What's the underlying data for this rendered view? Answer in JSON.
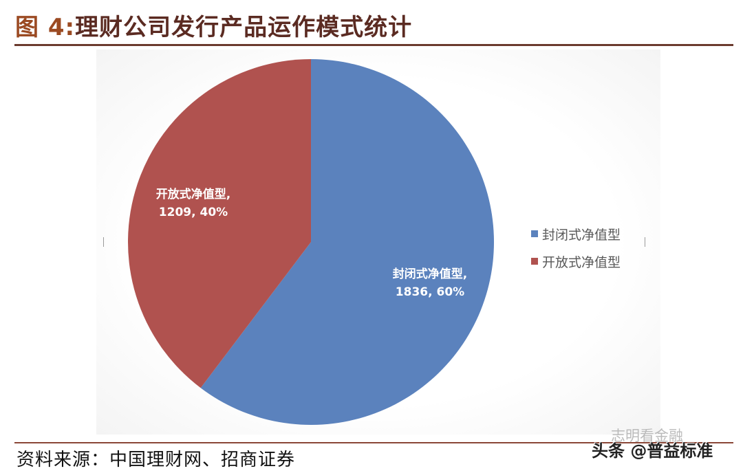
{
  "header": {
    "figure_number": "图 4:",
    "title": "理财公司发行产品运作模式统计"
  },
  "chart_data": {
    "type": "pie",
    "title": "理财公司发行产品运作模式统计",
    "categories": [
      "封闭式净值型",
      "开放式净值型"
    ],
    "values": [
      1836,
      1209
    ],
    "percentages": [
      60,
      40
    ],
    "colors": [
      "#5b82bd",
      "#b0524f"
    ],
    "data_labels": [
      {
        "name": "封闭式净值型,",
        "value_text": "1836, 60%"
      },
      {
        "name": "开放式净值型,",
        "value_text": "1209, 40%"
      }
    ],
    "legend_position": "right",
    "start_angle": 0,
    "direction": "clockwise"
  },
  "legend": {
    "items": [
      {
        "label": "封闭式净值型",
        "color": "#5b82bd"
      },
      {
        "label": "开放式净值型",
        "color": "#b0524f"
      }
    ]
  },
  "footer": {
    "source": "资料来源：中国理财网、招商证券",
    "watermark": "头条 @普益标准",
    "watermark_faint": "志明看金融"
  }
}
